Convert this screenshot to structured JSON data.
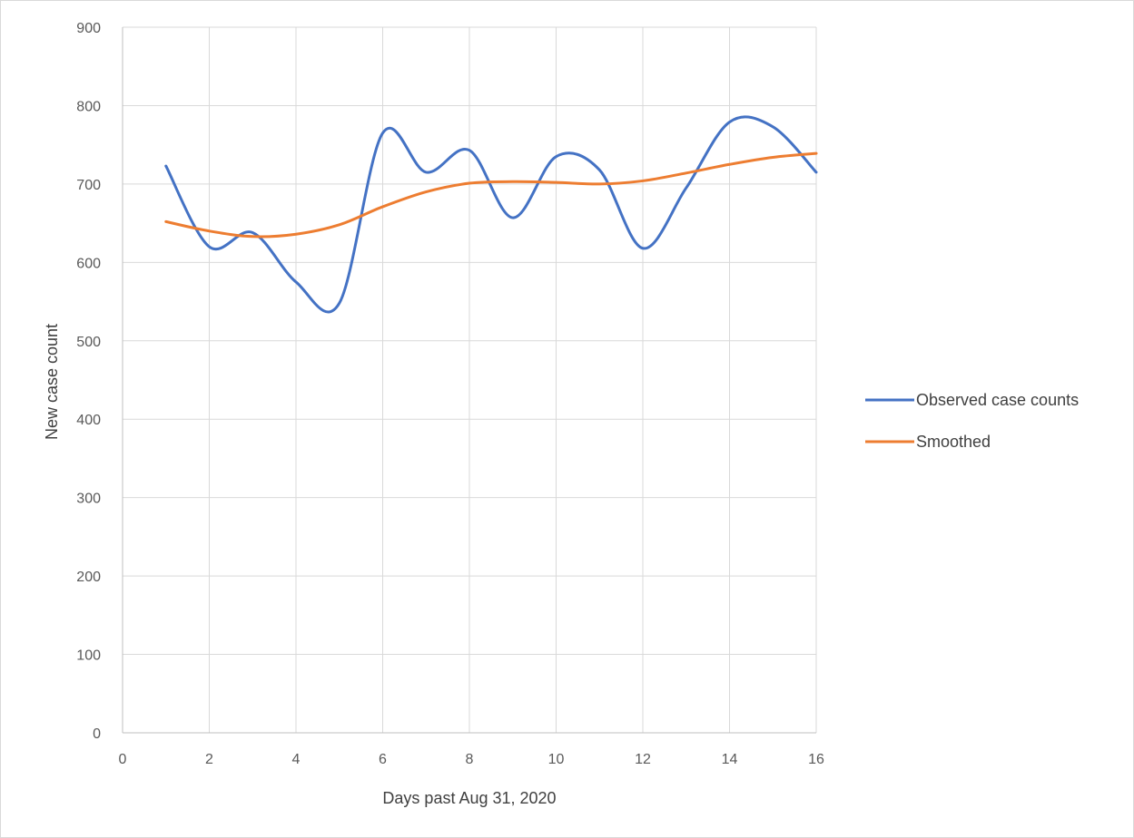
{
  "chart_data": {
    "type": "line",
    "title": "",
    "xlabel": "Days past Aug 31, 2020",
    "ylabel": "New case count",
    "xlim": [
      0,
      16
    ],
    "ylim": [
      0,
      900
    ],
    "xticks": [
      0,
      2,
      4,
      6,
      8,
      10,
      12,
      14,
      16
    ],
    "yticks": [
      0,
      100,
      200,
      300,
      400,
      500,
      600,
      700,
      800,
      900
    ],
    "grid": true,
    "smooth_lines": true,
    "legend_position": "right",
    "series": [
      {
        "name": "Observed case counts",
        "color": "#4472c4",
        "x": [
          1,
          2,
          3,
          4,
          5,
          6,
          7,
          8,
          9,
          10,
          11,
          12,
          13,
          14,
          15,
          16
        ],
        "y": [
          723,
          620,
          638,
          575,
          548,
          765,
          715,
          743,
          657,
          735,
          718,
          618,
          695,
          779,
          773,
          715
        ]
      },
      {
        "name": "Smoothed",
        "color": "#ed7d31",
        "x": [
          1,
          2,
          3,
          4,
          5,
          6,
          7,
          8,
          9,
          10,
          11,
          12,
          13,
          14,
          15,
          16
        ],
        "y": [
          652,
          640,
          633,
          636,
          648,
          671,
          690,
          701,
          703,
          702,
          700,
          704,
          714,
          725,
          734,
          739
        ]
      }
    ]
  }
}
